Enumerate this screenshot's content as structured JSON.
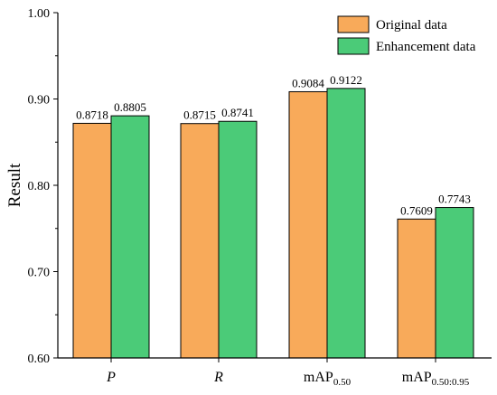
{
  "chart_data": {
    "type": "bar",
    "ylabel": "Result",
    "xlabel": "",
    "ylim": [
      0.6,
      1.0
    ],
    "yticks": [
      "0.60",
      "0.70",
      "0.80",
      "0.90",
      "1.00"
    ],
    "categories": [
      {
        "main": "P",
        "sub": "",
        "italic": true
      },
      {
        "main": "R",
        "sub": "",
        "italic": true
      },
      {
        "main": "mAP",
        "sub": "0.50",
        "italic": false
      },
      {
        "main": "mAP",
        "sub": "0.50:0.95",
        "italic": false
      }
    ],
    "series": [
      {
        "name": "Original data",
        "color": "#F8AA5A",
        "values": [
          0.8718,
          0.8715,
          0.9084,
          0.7609
        ],
        "labels": [
          "0.8718",
          "0.8715",
          "0.9084",
          "0.7609"
        ]
      },
      {
        "name": "Enhancement data",
        "color": "#4BCB78",
        "values": [
          0.8805,
          0.8741,
          0.9122,
          0.7743
        ],
        "labels": [
          "0.8805",
          "0.8741",
          "0.9122",
          "0.7743"
        ]
      }
    ],
    "legend_position": "top-right",
    "grid": false
  }
}
